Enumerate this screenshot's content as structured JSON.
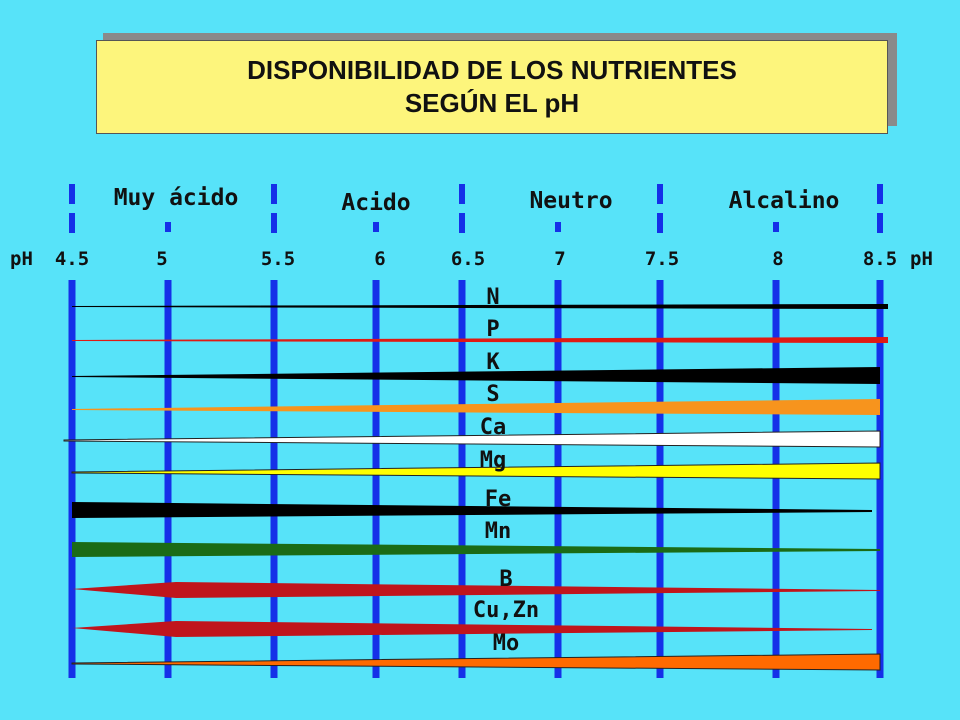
{
  "title": {
    "line1": "DISPONIBILIDAD DE LOS NUTRIENTES",
    "line2": "SEGÚN EL pH"
  },
  "axis": {
    "left_label": "pH",
    "right_label": "pH",
    "ticks": [
      "4.5",
      "5",
      "5.5",
      "6",
      "6.5",
      "7",
      "7.5",
      "8",
      "8.5"
    ]
  },
  "zones": [
    "Muy ácido",
    "Acido",
    "Neutro",
    "Alcalino"
  ],
  "colors": {
    "background": "#57e3f9",
    "title_box": "#fdf57c",
    "gridline": "#1530e8",
    "black": "#000000",
    "red": "#e01a14",
    "orange": "#f7941d",
    "white": "#ffffff",
    "yellow": "#ffff00",
    "green": "#1b6b16",
    "darkred": "#c0151c",
    "mo_orange": "#ff6a00"
  },
  "nutrients": [
    {
      "label": "N",
      "color": "black"
    },
    {
      "label": "P",
      "color": "red"
    },
    {
      "label": "K",
      "color": "black"
    },
    {
      "label": "S",
      "color": "orange"
    },
    {
      "label": "Ca",
      "color": "white"
    },
    {
      "label": "Mg",
      "color": "yellow"
    },
    {
      "label": "Fe",
      "color": "black"
    },
    {
      "label": "Mn",
      "color": "green"
    },
    {
      "label": "B",
      "color": "darkred"
    },
    {
      "label": "Cu,Zn",
      "color": "darkred"
    },
    {
      "label": "Mo",
      "color": "mo_orange"
    }
  ]
}
